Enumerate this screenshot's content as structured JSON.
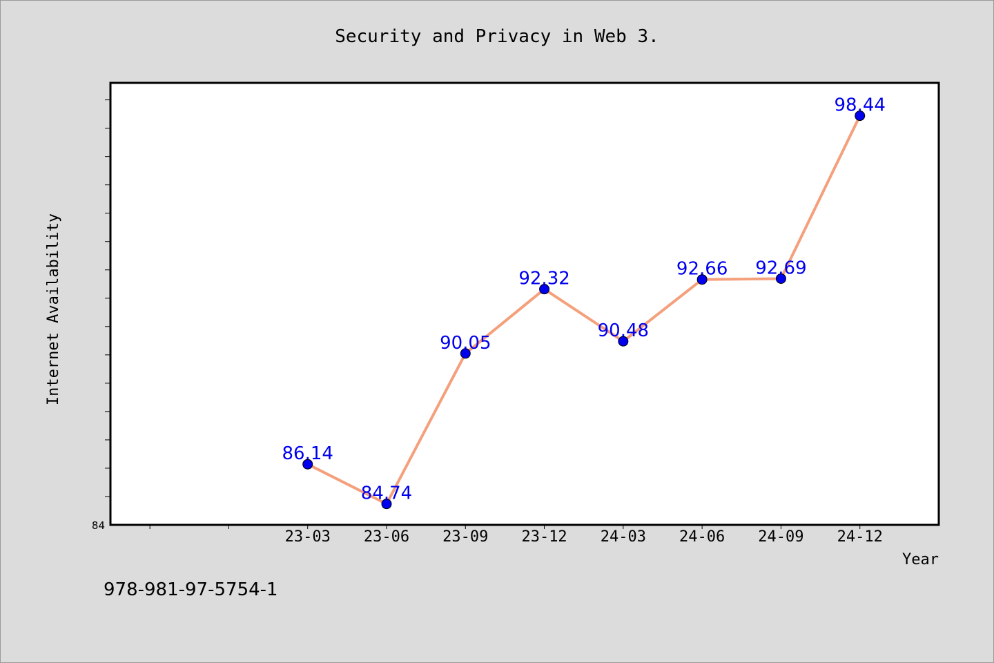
{
  "chart_data": {
    "type": "line",
    "title": "Security and Privacy in Web 3.",
    "xlabel": "Year",
    "ylabel": "Internet Availability",
    "categories": [
      "23-03",
      "23-06",
      "23-09",
      "23-12",
      "24-03",
      "24-06",
      "24-09",
      "24-12"
    ],
    "series": [
      {
        "values": [
          86.14,
          84.74,
          90.05,
          92.32,
          90.48,
          92.66,
          92.69,
          98.44
        ],
        "line_color": "#f4a07c",
        "marker_color": "#0000ee",
        "label_color": "#0000ee"
      }
    ],
    "y_tick_labels": [
      "84"
    ],
    "ylim": [
      84,
      99.6
    ],
    "x_padding_categories": 2,
    "grid": false,
    "legend": "none"
  },
  "footer": {
    "isbn": "978-981-97-5754-1"
  },
  "colors": {
    "background": "#dcdcdc",
    "plot_background": "#ffffff",
    "frame": "#000000"
  }
}
